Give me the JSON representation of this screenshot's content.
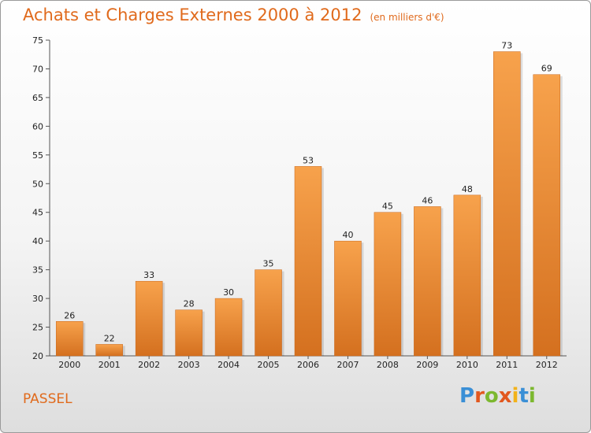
{
  "header": {
    "title": "Achats et Charges Externes 2000 à 2012",
    "subtitle": "(en milliers d'€)"
  },
  "footer": {
    "place": "PASSEL",
    "logo": "Proxiti"
  },
  "colors": {
    "bar_top": "#f7a24c",
    "bar_bottom": "#d4701f",
    "title": "#e06a1c"
  },
  "chart_data": {
    "type": "bar",
    "title": "Achats et Charges Externes 2000 à 2012",
    "subtitle": "(en milliers d'€)",
    "categories": [
      "2000",
      "2001",
      "2002",
      "2003",
      "2004",
      "2005",
      "2006",
      "2007",
      "2008",
      "2009",
      "2010",
      "2011",
      "2012"
    ],
    "values": [
      26,
      22,
      33,
      28,
      30,
      35,
      53,
      40,
      45,
      46,
      48,
      73,
      69
    ],
    "ylim": [
      20,
      75
    ],
    "yticks": [
      20,
      25,
      30,
      35,
      40,
      45,
      50,
      55,
      60,
      65,
      70,
      75
    ],
    "grid": false,
    "legend": "none"
  }
}
